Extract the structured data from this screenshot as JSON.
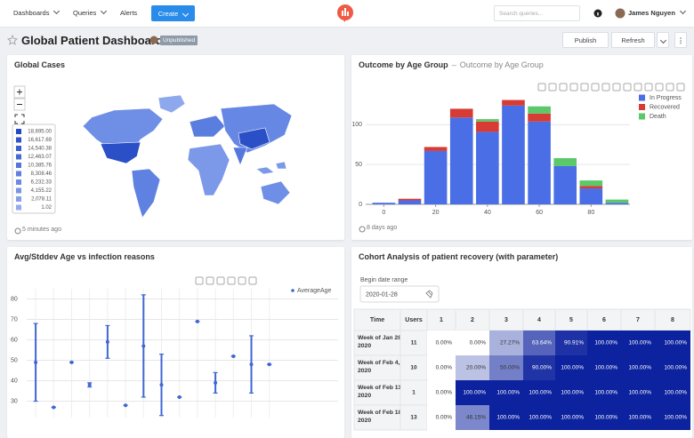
{
  "header": {
    "nav": [
      "Dashboards",
      "Queries",
      "Alerts"
    ],
    "create": "Create",
    "search_placeholder": "Search queries...",
    "user": "James Nguyen"
  },
  "dashboard": {
    "title": "Global Patient Dashboard",
    "status": "Unpublished",
    "actions": [
      "Publish",
      "Refresh"
    ]
  },
  "map_widget": {
    "title": "Global Cases",
    "legend": [
      "18,695.00",
      "16,617.69",
      "14,540.38",
      "12,463.07",
      "10,385.76",
      "8,308.46",
      "6,232.33",
      "4,155.22",
      "2,078.11",
      "1.02"
    ],
    "legend_colors": [
      "#2448c4",
      "#2f53c9",
      "#3b5ecf",
      "#4769d4",
      "#5374d9",
      "#607fde",
      "#6c8ae2",
      "#7895e6",
      "#85a0ea",
      "#92abee"
    ],
    "updated": "5 minutes ago"
  },
  "chart_data": [
    {
      "type": "bar",
      "stacked": true,
      "title": "Outcome by Age Group",
      "subtitle": "Outcome by Age Group",
      "x": [
        0,
        10,
        20,
        30,
        40,
        50,
        60,
        70,
        80,
        90
      ],
      "series": [
        {
          "name": "In Progress",
          "color": "#4a6ee6",
          "values": [
            2,
            5,
            67,
            109,
            91,
            124,
            104,
            48,
            20,
            2
          ]
        },
        {
          "name": "Recovered",
          "color": "#d63b34",
          "values": [
            0,
            2,
            5,
            11,
            13,
            7,
            10,
            0,
            3,
            0
          ]
        },
        {
          "name": "Death",
          "color": "#5bc86a",
          "values": [
            0,
            0,
            0,
            0,
            3,
            0,
            9,
            10,
            7,
            4
          ]
        }
      ],
      "xlim": [
        -7,
        95
      ],
      "xticks": [
        0,
        20,
        40,
        60,
        80
      ],
      "ylim": [
        0,
        145
      ],
      "yticks": [
        0,
        50,
        100
      ],
      "grid": true,
      "updated": "8 days ago"
    },
    {
      "type": "errorbar",
      "title": "Avg/Stddev Age vs infection reasons",
      "categories": [
        null,
        null,
        null,
        null,
        null,
        null,
        null,
        null,
        null,
        null,
        null,
        null,
        null,
        null
      ],
      "series": [
        {
          "name": "AverageAge",
          "color": "#3f66d4",
          "values": [
            49,
            27,
            49,
            38,
            59,
            28,
            57,
            38,
            32,
            69,
            39,
            52,
            48,
            48
          ],
          "errors": [
            19,
            0,
            0,
            1,
            8,
            0,
            25,
            15,
            0,
            0,
            5,
            0,
            14,
            0
          ]
        }
      ],
      "ylim": [
        22,
        85
      ],
      "yticks": [
        30,
        40,
        50,
        60,
        70,
        80
      ],
      "grid": true
    }
  ],
  "cohort": {
    "title": "Cohort Analysis of patient recovery (with parameter)",
    "param_label": "Begin date range",
    "param_value": "2020-01-28",
    "columns": [
      "Time",
      "Users",
      "1",
      "2",
      "3",
      "4",
      "5",
      "6",
      "7",
      "8"
    ],
    "rows": [
      [
        "Week of Jan 28, 2020",
        "11",
        "0.00%",
        "0.00%",
        "27.27%",
        "63.64%",
        "90.91%",
        "100.00%",
        "100.00%",
        "100.00%"
      ],
      [
        "Week of Feb 4, 2020",
        "10",
        "0.00%",
        "20.00%",
        "50.00%",
        "90.00%",
        "100.00%",
        "100.00%",
        "100.00%",
        "100.00%"
      ],
      [
        "Week of Feb 11, 2020",
        "1",
        "0.00%",
        "100.00%",
        "100.00%",
        "100.00%",
        "100.00%",
        "100.00%",
        "100.00%",
        "100.00%"
      ],
      [
        "Week of Feb 18, 2020",
        "13",
        "0.00%",
        "46.15%",
        "100.00%",
        "100.00%",
        "100.00%",
        "100.00%",
        "100.00%",
        "100.00%"
      ]
    ]
  }
}
